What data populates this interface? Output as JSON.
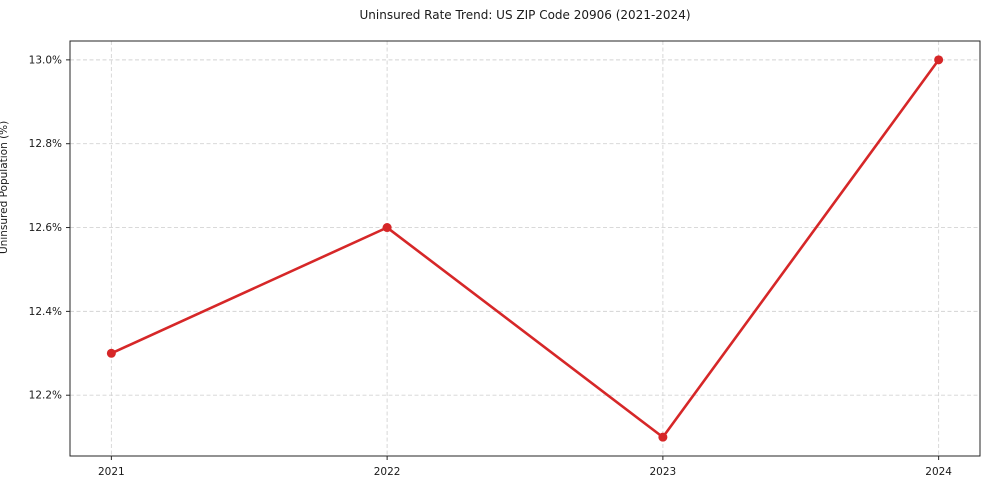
{
  "chart_data": {
    "type": "line",
    "title": "Uninsured Rate Trend: US ZIP Code 20906 (2021-2024)",
    "xlabel": "",
    "ylabel": "Uninsured Population (%)",
    "categories": [
      "2021",
      "2022",
      "2023",
      "2024"
    ],
    "series": [
      {
        "name": "Uninsured rate",
        "values": [
          12.3,
          12.6,
          12.1,
          13.0
        ]
      }
    ],
    "yticks": {
      "values": [
        12.2,
        12.4,
        12.6,
        12.8,
        13.0
      ],
      "labels": [
        "12.2%",
        "12.4%",
        "12.6%",
        "12.8%",
        "13.0%"
      ]
    },
    "ylim": [
      12.055,
      13.045
    ],
    "grid": "on",
    "grid_style": "dashed",
    "legend": "none",
    "colors": {
      "line": "#d62728",
      "marker": "#d62728",
      "grid": "#d4d4d4",
      "spine": "#262626",
      "text": "#1a1a1a",
      "background": "#ffffff"
    }
  }
}
